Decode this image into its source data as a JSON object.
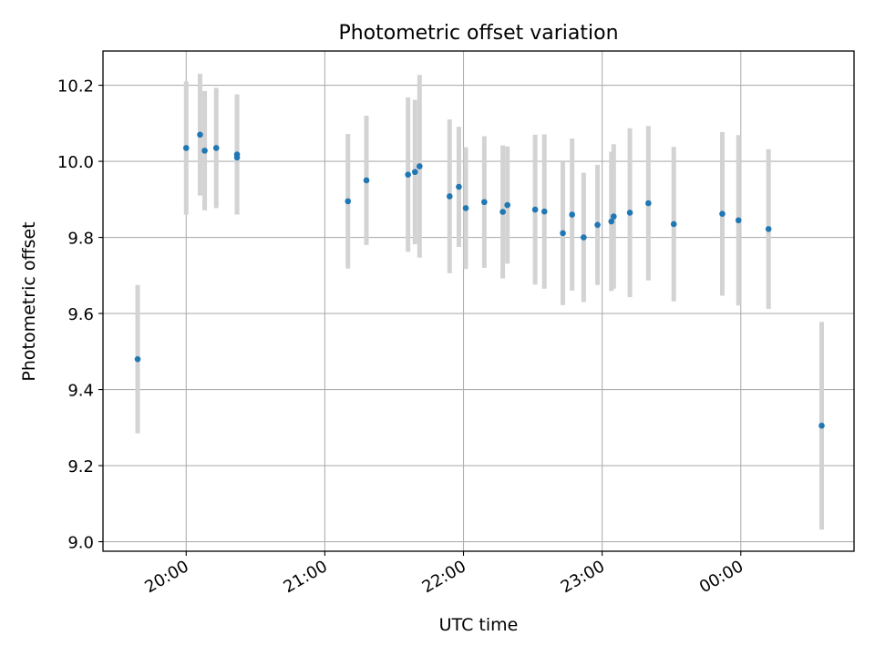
{
  "chart_data": {
    "type": "scatter",
    "title": "Photometric offset variation",
    "xlabel": "UTC time",
    "ylabel": "Photometric offset",
    "xlim": [
      "19:24",
      "00:49"
    ],
    "ylim": [
      8.975,
      10.29
    ],
    "x_ticks": [
      "20:00",
      "21:00",
      "22:00",
      "23:00",
      "00:00"
    ],
    "y_ticks": [
      "9.0",
      "9.2",
      "9.4",
      "9.6",
      "9.8",
      "10.0",
      "10.2"
    ],
    "grid": true,
    "colors": {
      "point": "#1f77b4",
      "errorbar": "#d3d3d3"
    },
    "series": [
      {
        "points": [
          {
            "x": "19:39",
            "y": 9.48,
            "err": 0.195
          },
          {
            "x": "20:00",
            "y": 10.035,
            "err": 0.175
          },
          {
            "x": "20:06",
            "y": 10.07,
            "err": 0.16
          },
          {
            "x": "20:08",
            "y": 10.028,
            "err": 0.157
          },
          {
            "x": "20:13",
            "y": 10.035,
            "err": 0.158
          },
          {
            "x": "20:22",
            "y": 10.018,
            "err": 0.158
          },
          {
            "x": "20:22",
            "y": 10.01,
            "err": 0.15
          },
          {
            "x": "21:10",
            "y": 9.895,
            "err": 0.177
          },
          {
            "x": "21:18",
            "y": 9.95,
            "err": 0.17
          },
          {
            "x": "21:36",
            "y": 9.965,
            "err": 0.203
          },
          {
            "x": "21:39",
            "y": 9.972,
            "err": 0.19
          },
          {
            "x": "21:41",
            "y": 9.987,
            "err": 0.24
          },
          {
            "x": "21:54",
            "y": 9.908,
            "err": 0.202
          },
          {
            "x": "21:58",
            "y": 9.933,
            "err": 0.158
          },
          {
            "x": "22:01",
            "y": 9.877,
            "err": 0.16
          },
          {
            "x": "22:09",
            "y": 9.893,
            "err": 0.173
          },
          {
            "x": "22:17",
            "y": 9.867,
            "err": 0.175
          },
          {
            "x": "22:19",
            "y": 9.885,
            "err": 0.154
          },
          {
            "x": "22:31",
            "y": 9.873,
            "err": 0.197
          },
          {
            "x": "22:35",
            "y": 9.868,
            "err": 0.203
          },
          {
            "x": "22:43",
            "y": 9.811,
            "err": 0.189
          },
          {
            "x": "22:47",
            "y": 9.86,
            "err": 0.2
          },
          {
            "x": "22:52",
            "y": 9.8,
            "err": 0.17
          },
          {
            "x": "22:58",
            "y": 9.833,
            "err": 0.158
          },
          {
            "x": "23:04",
            "y": 9.842,
            "err": 0.183
          },
          {
            "x": "23:05",
            "y": 9.855,
            "err": 0.19
          },
          {
            "x": "23:12",
            "y": 9.865,
            "err": 0.222
          },
          {
            "x": "23:20",
            "y": 9.89,
            "err": 0.203
          },
          {
            "x": "23:31",
            "y": 9.835,
            "err": 0.203
          },
          {
            "x": "23:52",
            "y": 9.862,
            "err": 0.215
          },
          {
            "x": "23:59",
            "y": 9.845,
            "err": 0.224
          },
          {
            "x": "00:12",
            "y": 9.822,
            "err": 0.21
          },
          {
            "x": "00:35",
            "y": 9.305,
            "err": 0.273
          }
        ]
      }
    ]
  }
}
